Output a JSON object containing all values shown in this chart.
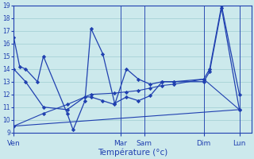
{
  "background_color": "#cce9ec",
  "grid_color": "#9fcdd1",
  "line_color": "#2040b0",
  "xlabel": "Température (°c)",
  "xlabel_color": "#2040b0",
  "ylim": [
    9,
    19
  ],
  "yticks": [
    9,
    10,
    11,
    12,
    13,
    14,
    15,
    16,
    17,
    18,
    19
  ],
  "day_labels": [
    "Ven",
    "Mar",
    "Sam",
    "Dim",
    "Lun"
  ],
  "day_x": [
    0,
    18,
    22,
    32,
    38
  ],
  "xlim": [
    0,
    40
  ],
  "series1_x": [
    0,
    1,
    2,
    4,
    5,
    9,
    10,
    12,
    13,
    15,
    17,
    19,
    21,
    23,
    25,
    27,
    32,
    33,
    35,
    38
  ],
  "series1_y": [
    16.5,
    14.2,
    14.0,
    13.0,
    15.0,
    10.5,
    9.2,
    11.5,
    17.2,
    15.2,
    11.3,
    11.8,
    11.5,
    11.9,
    13.0,
    13.0,
    13.2,
    14.0,
    19.0,
    12.0
  ],
  "series2_x": [
    0,
    2,
    5,
    9,
    12,
    13,
    15,
    17,
    19,
    21,
    23,
    25,
    27,
    32,
    33,
    35,
    38
  ],
  "series2_y": [
    14.0,
    13.0,
    11.0,
    10.8,
    11.8,
    11.8,
    11.5,
    11.2,
    14.0,
    13.2,
    12.8,
    13.0,
    13.0,
    13.0,
    13.8,
    18.8,
    10.8
  ],
  "series3_x": [
    0,
    5,
    9,
    13,
    17,
    19,
    21,
    23,
    25,
    27,
    32,
    38
  ],
  "series3_y": [
    9.5,
    10.5,
    11.2,
    12.0,
    12.1,
    12.2,
    12.3,
    12.5,
    12.7,
    12.8,
    13.2,
    10.8
  ],
  "series4_x": [
    0,
    38
  ],
  "series4_y": [
    9.5,
    10.8
  ]
}
